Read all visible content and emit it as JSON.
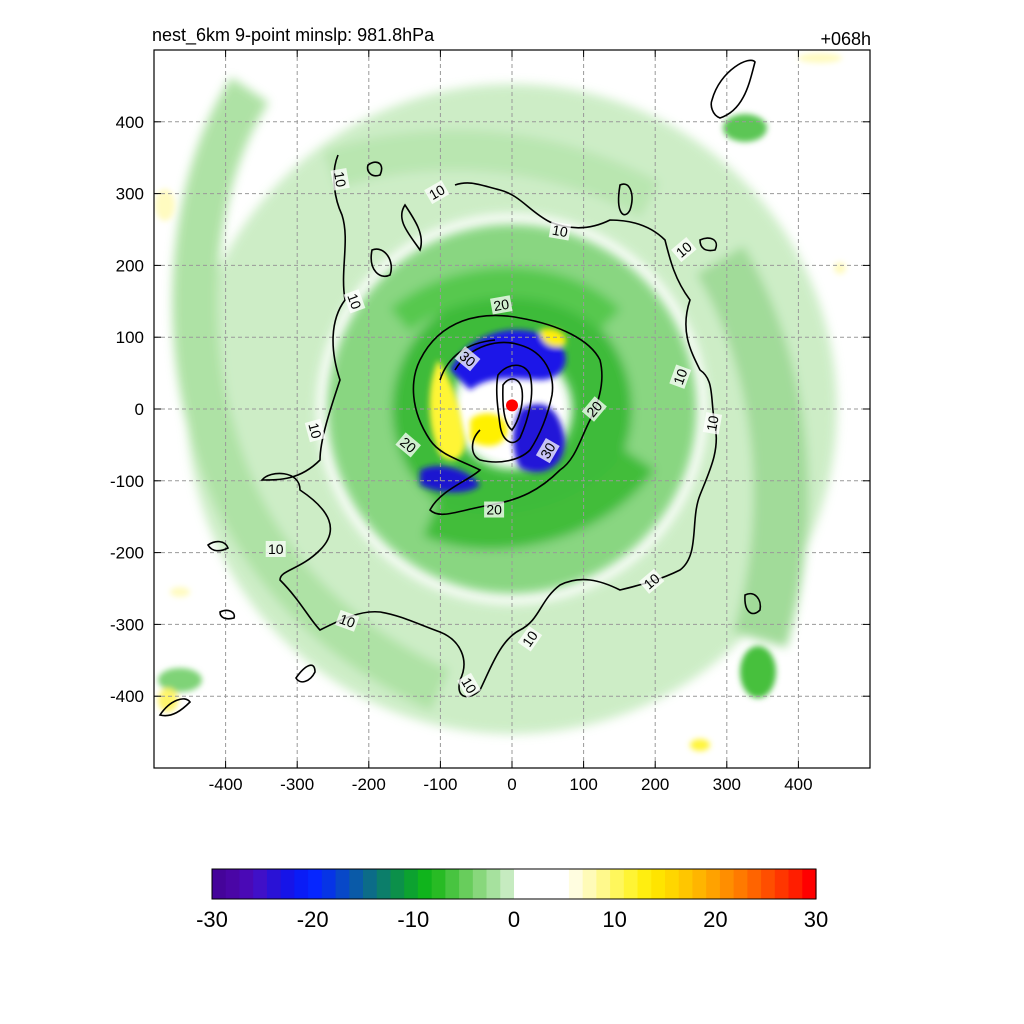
{
  "chart_data": {
    "type": "heatmap",
    "title_left": "nest_6km  9-point minslp: 981.8hPa",
    "title_right": "+068h",
    "xlim": [
      -500,
      500
    ],
    "ylim": [
      -500,
      500
    ],
    "x_ticks": [
      -400,
      -300,
      -200,
      -100,
      0,
      100,
      200,
      300,
      400
    ],
    "y_ticks": [
      -400,
      -300,
      -200,
      -100,
      0,
      100,
      200,
      300,
      400
    ],
    "x_tick_labels": [
      "-400",
      "-300",
      "-200",
      "-100",
      "0",
      "100",
      "200",
      "300",
      "400"
    ],
    "y_tick_labels": [
      "-400",
      "-300",
      "-200",
      "-100",
      "0",
      "100",
      "200",
      "300",
      "400"
    ],
    "grid": true,
    "grid_style": "dashed",
    "center_marker": {
      "x": 0,
      "y": 5,
      "color": "#ff0000"
    },
    "contour_levels": [
      10,
      20,
      30
    ],
    "contour_labels": [
      {
        "text": "10",
        "x": -240,
        "y": 320,
        "rot": 80
      },
      {
        "text": "10",
        "x": -105,
        "y": 302,
        "rot": -30
      },
      {
        "text": "10",
        "x": 67,
        "y": 248,
        "rot": 10
      },
      {
        "text": "10",
        "x": 240,
        "y": 222,
        "rot": -40
      },
      {
        "text": "10",
        "x": -220,
        "y": 150,
        "rot": 70
      },
      {
        "text": "10",
        "x": 235,
        "y": 45,
        "rot": -70
      },
      {
        "text": "10",
        "x": -275,
        "y": -30,
        "rot": 75
      },
      {
        "text": "10",
        "x": 280,
        "y": -20,
        "rot": -80
      },
      {
        "text": "10",
        "x": -330,
        "y": -195,
        "rot": 0
      },
      {
        "text": "10",
        "x": 195,
        "y": -240,
        "rot": -40
      },
      {
        "text": "10",
        "x": -230,
        "y": -295,
        "rot": 20
      },
      {
        "text": "10",
        "x": 25,
        "y": -320,
        "rot": -55
      },
      {
        "text": "10",
        "x": -60,
        "y": -385,
        "rot": 60
      },
      {
        "text": "20",
        "x": -15,
        "y": 145,
        "rot": -10
      },
      {
        "text": "20",
        "x": 115,
        "y": 0,
        "rot": -50
      },
      {
        "text": "20",
        "x": -145,
        "y": -50,
        "rot": 40
      },
      {
        "text": "20",
        "x": -25,
        "y": -140,
        "rot": 0
      },
      {
        "text": "30",
        "x": -62,
        "y": 70,
        "rot": 40
      },
      {
        "text": "30",
        "x": 50,
        "y": -58,
        "rot": -60
      }
    ],
    "colorbar": {
      "min": -30,
      "max": 30,
      "ticks": [
        -30,
        -20,
        -10,
        0,
        10,
        20,
        30
      ],
      "tick_labels": [
        "-30",
        "-20",
        "-10",
        "0",
        "10",
        "20",
        "30"
      ],
      "colors": [
        "#45049a",
        "#4a06a6",
        "#4a09b6",
        "#4010c8",
        "#2a12d6",
        "#1614e8",
        "#0a1cf6",
        "#0626ff",
        "#0634e6",
        "#0848c8",
        "#0a5aa8",
        "#0c6c88",
        "#0c7e6a",
        "#0c904a",
        "#0ca230",
        "#10b41c",
        "#28bb24",
        "#48c440",
        "#68cd5c",
        "#88d77c",
        "#a6e19e",
        "#c6ebc0",
        "#ffffff",
        "#ffffff",
        "#ffffff",
        "#ffffff",
        "#fffde0",
        "#fffbb8",
        "#fff98c",
        "#fff75c",
        "#fff434",
        "#ffee10",
        "#ffe400",
        "#ffd600",
        "#ffc600",
        "#ffb500",
        "#ffa200",
        "#ff8e00",
        "#ff7a00",
        "#ff6400",
        "#ff4e00",
        "#ff3600",
        "#ff1e00",
        "#ff0000"
      ]
    }
  }
}
